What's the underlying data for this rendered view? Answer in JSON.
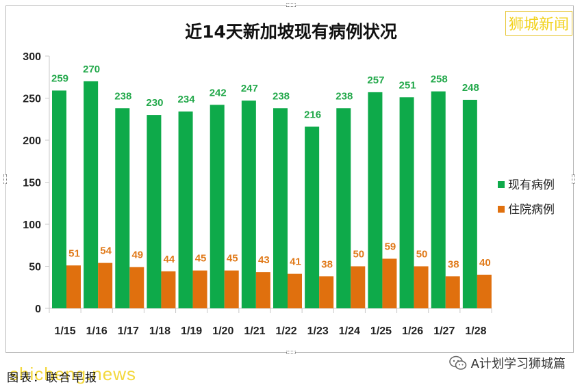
{
  "chart_data": {
    "type": "bar",
    "title": "近14天新加坡现有病例状况",
    "categories": [
      "1/15",
      "1/16",
      "1/17",
      "1/18",
      "1/19",
      "1/20",
      "1/21",
      "1/22",
      "1/23",
      "1/24",
      "1/25",
      "1/26",
      "1/27",
      "1/28"
    ],
    "series": [
      {
        "name": "现有病例",
        "color": "#0eaa4a",
        "values": [
          259,
          270,
          238,
          230,
          234,
          242,
          247,
          238,
          216,
          238,
          257,
          251,
          258,
          248
        ]
      },
      {
        "name": "住院病例",
        "color": "#e0700e",
        "values": [
          51,
          54,
          49,
          44,
          45,
          45,
          43,
          41,
          38,
          50,
          59,
          50,
          38,
          40
        ]
      }
    ],
    "ylim": [
      0,
      300
    ],
    "yticks": [
      0,
      50,
      100,
      150,
      200,
      250,
      300
    ],
    "grid": false,
    "legend_position": "right"
  },
  "brand": "狮城新闻",
  "source_text": "图表：联合早报",
  "watermark_site": "shicheng.news",
  "wechat_account": "A计划学习狮城篇"
}
